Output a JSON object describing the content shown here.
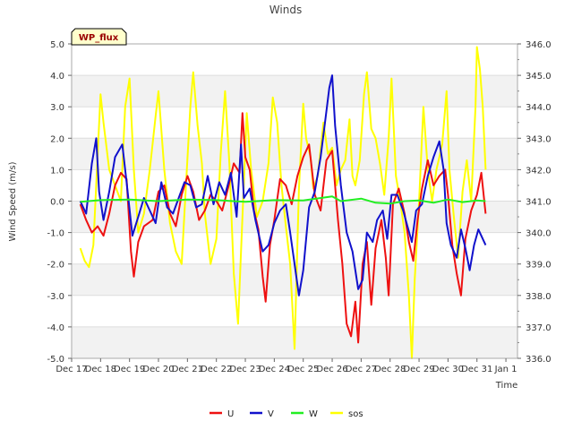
{
  "chart_data": {
    "type": "line",
    "title": "Winds",
    "xlabel": "Time",
    "ylabel": "Wind Speed (m/s)",
    "badge": "WP_flux",
    "x_range": [
      0,
      15.4
    ],
    "ylim": [
      -5.0,
      5.0
    ],
    "y2lim": [
      336.0,
      346.0
    ],
    "x_ticks": [
      {
        "x": 0,
        "label": "Dec 17"
      },
      {
        "x": 1,
        "label": "Dec 18"
      },
      {
        "x": 2,
        "label": "Dec 19"
      },
      {
        "x": 3,
        "label": "Dec 20"
      },
      {
        "x": 4,
        "label": "Dec 21"
      },
      {
        "x": 5,
        "label": "Dec 22"
      },
      {
        "x": 6,
        "label": "Dec 23"
      },
      {
        "x": 7,
        "label": "Dec 24"
      },
      {
        "x": 8,
        "label": "Dec 25"
      },
      {
        "x": 9,
        "label": "Dec 26"
      },
      {
        "x": 10,
        "label": "Dec 27"
      },
      {
        "x": 11,
        "label": "Dec 28"
      },
      {
        "x": 12,
        "label": "Dec 29"
      },
      {
        "x": 13,
        "label": "Dec 30"
      },
      {
        "x": 14,
        "label": "Dec 31"
      },
      {
        "x": 15,
        "label": "Jan 1"
      }
    ],
    "y_ticks": [
      {
        "v": 5.0,
        "label": "5.0"
      },
      {
        "v": 4.0,
        "label": "4.0"
      },
      {
        "v": 3.0,
        "label": "3.0"
      },
      {
        "v": 2.0,
        "label": "2.0"
      },
      {
        "v": 1.0,
        "label": "1.0"
      },
      {
        "v": 0.0,
        "label": "0.0"
      },
      {
        "v": -1.0,
        "label": "-1.0"
      },
      {
        "v": -2.0,
        "label": "-2.0"
      },
      {
        "v": -3.0,
        "label": "-3.0"
      },
      {
        "v": -4.0,
        "label": "-4.0"
      },
      {
        "v": -5.0,
        "label": "-5.0"
      }
    ],
    "y2_ticks": [
      {
        "v": 346.0,
        "label": "346.0"
      },
      {
        "v": 345.0,
        "label": "345.0"
      },
      {
        "v": 344.0,
        "label": "344.0"
      },
      {
        "v": 343.0,
        "label": "343.0"
      },
      {
        "v": 342.0,
        "label": "342.0"
      },
      {
        "v": 341.0,
        "label": "341.0"
      },
      {
        "v": 340.0,
        "label": "340.0"
      },
      {
        "v": 339.0,
        "label": "339.0"
      },
      {
        "v": 338.0,
        "label": "338.0"
      },
      {
        "v": 337.0,
        "label": "337.0"
      },
      {
        "v": 336.0,
        "label": "336.0"
      }
    ],
    "series": [
      {
        "name": "U",
        "color": "#ee1111",
        "axis": "left",
        "points": [
          [
            0.3,
            -0.1
          ],
          [
            0.5,
            -0.6
          ],
          [
            0.7,
            -1.0
          ],
          [
            0.9,
            -0.8
          ],
          [
            1.1,
            -1.1
          ],
          [
            1.3,
            -0.4
          ],
          [
            1.5,
            0.5
          ],
          [
            1.7,
            0.9
          ],
          [
            1.9,
            0.7
          ],
          [
            2.05,
            -1.6
          ],
          [
            2.15,
            -2.4
          ],
          [
            2.3,
            -1.3
          ],
          [
            2.5,
            -0.8
          ],
          [
            2.8,
            -0.6
          ],
          [
            3.0,
            0.3
          ],
          [
            3.2,
            0.5
          ],
          [
            3.4,
            -0.4
          ],
          [
            3.6,
            -0.8
          ],
          [
            3.8,
            0.2
          ],
          [
            4.0,
            0.8
          ],
          [
            4.2,
            0.3
          ],
          [
            4.4,
            -0.6
          ],
          [
            4.6,
            -0.3
          ],
          [
            4.8,
            0.2
          ],
          [
            5.0,
            0.0
          ],
          [
            5.2,
            -0.3
          ],
          [
            5.4,
            0.4
          ],
          [
            5.6,
            1.2
          ],
          [
            5.8,
            0.9
          ],
          [
            5.9,
            2.8
          ],
          [
            6.0,
            1.4
          ],
          [
            6.15,
            1.0
          ],
          [
            6.3,
            -0.3
          ],
          [
            6.45,
            -0.9
          ],
          [
            6.6,
            -2.4
          ],
          [
            6.7,
            -3.2
          ],
          [
            6.85,
            -1.4
          ],
          [
            7.0,
            -0.6
          ],
          [
            7.2,
            0.7
          ],
          [
            7.4,
            0.5
          ],
          [
            7.6,
            -0.1
          ],
          [
            7.8,
            0.8
          ],
          [
            8.0,
            1.4
          ],
          [
            8.2,
            1.8
          ],
          [
            8.4,
            0.2
          ],
          [
            8.6,
            -0.3
          ],
          [
            8.8,
            1.3
          ],
          [
            9.0,
            1.6
          ],
          [
            9.2,
            -0.6
          ],
          [
            9.35,
            -2.0
          ],
          [
            9.5,
            -3.9
          ],
          [
            9.65,
            -4.3
          ],
          [
            9.8,
            -3.2
          ],
          [
            9.9,
            -4.5
          ],
          [
            10.05,
            -2.0
          ],
          [
            10.2,
            -1.3
          ],
          [
            10.35,
            -3.3
          ],
          [
            10.5,
            -1.5
          ],
          [
            10.7,
            -0.6
          ],
          [
            10.85,
            -1.8
          ],
          [
            10.95,
            -3.0
          ],
          [
            11.1,
            -0.1
          ],
          [
            11.3,
            0.4
          ],
          [
            11.5,
            -0.4
          ],
          [
            11.65,
            -1.3
          ],
          [
            11.8,
            -1.9
          ],
          [
            11.95,
            -0.6
          ],
          [
            12.1,
            0.4
          ],
          [
            12.3,
            1.3
          ],
          [
            12.5,
            0.5
          ],
          [
            12.7,
            0.8
          ],
          [
            12.9,
            1.0
          ],
          [
            13.0,
            0.2
          ],
          [
            13.15,
            -1.4
          ],
          [
            13.3,
            -2.3
          ],
          [
            13.45,
            -3.0
          ],
          [
            13.6,
            -1.2
          ],
          [
            13.8,
            -0.3
          ],
          [
            14.0,
            0.2
          ],
          [
            14.15,
            0.9
          ],
          [
            14.3,
            -0.4
          ]
        ]
      },
      {
        "name": "V",
        "color": "#1111cc",
        "axis": "left",
        "points": [
          [
            0.3,
            0.0
          ],
          [
            0.5,
            -0.4
          ],
          [
            0.7,
            1.2
          ],
          [
            0.85,
            2.0
          ],
          [
            0.95,
            0.3
          ],
          [
            1.1,
            -0.6
          ],
          [
            1.3,
            0.3
          ],
          [
            1.5,
            1.4
          ],
          [
            1.75,
            1.8
          ],
          [
            1.9,
            0.6
          ],
          [
            2.1,
            -1.1
          ],
          [
            2.3,
            -0.5
          ],
          [
            2.5,
            0.1
          ],
          [
            2.7,
            -0.3
          ],
          [
            2.9,
            -0.7
          ],
          [
            3.1,
            0.6
          ],
          [
            3.3,
            -0.2
          ],
          [
            3.5,
            -0.4
          ],
          [
            3.7,
            0.1
          ],
          [
            3.9,
            0.6
          ],
          [
            4.1,
            0.5
          ],
          [
            4.3,
            -0.2
          ],
          [
            4.5,
            -0.1
          ],
          [
            4.7,
            0.8
          ],
          [
            4.9,
            -0.1
          ],
          [
            5.1,
            0.6
          ],
          [
            5.3,
            0.2
          ],
          [
            5.5,
            0.9
          ],
          [
            5.7,
            -0.5
          ],
          [
            5.85,
            1.8
          ],
          [
            5.95,
            0.1
          ],
          [
            6.15,
            0.4
          ],
          [
            6.35,
            -0.6
          ],
          [
            6.6,
            -1.6
          ],
          [
            6.8,
            -1.4
          ],
          [
            7.0,
            -0.7
          ],
          [
            7.2,
            -0.3
          ],
          [
            7.4,
            -0.1
          ],
          [
            7.55,
            -1.0
          ],
          [
            7.7,
            -2.0
          ],
          [
            7.85,
            -3.0
          ],
          [
            8.0,
            -2.2
          ],
          [
            8.2,
            -0.2
          ],
          [
            8.4,
            0.3
          ],
          [
            8.6,
            1.4
          ],
          [
            8.75,
            2.5
          ],
          [
            8.9,
            3.6
          ],
          [
            9.0,
            4.0
          ],
          [
            9.1,
            2.4
          ],
          [
            9.3,
            0.5
          ],
          [
            9.5,
            -1.0
          ],
          [
            9.7,
            -1.6
          ],
          [
            9.9,
            -2.8
          ],
          [
            10.05,
            -2.5
          ],
          [
            10.2,
            -1.0
          ],
          [
            10.4,
            -1.3
          ],
          [
            10.55,
            -0.6
          ],
          [
            10.75,
            -0.3
          ],
          [
            10.9,
            -1.2
          ],
          [
            11.05,
            0.2
          ],
          [
            11.25,
            0.2
          ],
          [
            11.45,
            -0.3
          ],
          [
            11.6,
            -0.8
          ],
          [
            11.75,
            -1.3
          ],
          [
            11.9,
            -0.3
          ],
          [
            12.1,
            -0.1
          ],
          [
            12.3,
            0.8
          ],
          [
            12.5,
            1.4
          ],
          [
            12.7,
            1.9
          ],
          [
            12.85,
            1.0
          ],
          [
            12.95,
            -0.7
          ],
          [
            13.1,
            -1.4
          ],
          [
            13.3,
            -1.8
          ],
          [
            13.45,
            -0.9
          ],
          [
            13.6,
            -1.5
          ],
          [
            13.75,
            -2.2
          ],
          [
            13.9,
            -1.4
          ],
          [
            14.05,
            -0.9
          ],
          [
            14.3,
            -1.4
          ]
        ]
      },
      {
        "name": "W",
        "color": "#22ee22",
        "axis": "left",
        "points": [
          [
            0.3,
            -0.02
          ],
          [
            1.0,
            0.03
          ],
          [
            2.0,
            0.05
          ],
          [
            3.0,
            0.0
          ],
          [
            4.0,
            0.05
          ],
          [
            5.0,
            0.03
          ],
          [
            6.0,
            -0.02
          ],
          [
            7.0,
            0.03
          ],
          [
            8.0,
            0.02
          ],
          [
            9.0,
            0.15
          ],
          [
            9.3,
            0.0
          ],
          [
            10.0,
            0.08
          ],
          [
            10.5,
            -0.05
          ],
          [
            11.0,
            -0.08
          ],
          [
            11.5,
            0.0
          ],
          [
            12.0,
            0.02
          ],
          [
            12.5,
            -0.05
          ],
          [
            13.0,
            0.05
          ],
          [
            13.5,
            -0.03
          ],
          [
            14.0,
            0.02
          ],
          [
            14.3,
            0.0
          ]
        ]
      },
      {
        "name": "sos",
        "color": "#ffff00",
        "axis": "right",
        "points": [
          [
            0.3,
            339.5
          ],
          [
            0.45,
            339.1
          ],
          [
            0.6,
            338.9
          ],
          [
            0.75,
            339.6
          ],
          [
            0.9,
            342.5
          ],
          [
            1.0,
            344.4
          ],
          [
            1.1,
            343.5
          ],
          [
            1.3,
            342.0
          ],
          [
            1.5,
            341.5
          ],
          [
            1.7,
            341.0
          ],
          [
            1.85,
            344.0
          ],
          [
            2.0,
            344.9
          ],
          [
            2.15,
            342.0
          ],
          [
            2.3,
            340.0
          ],
          [
            2.5,
            340.6
          ],
          [
            2.7,
            342.0
          ],
          [
            2.9,
            343.7
          ],
          [
            3.0,
            344.5
          ],
          [
            3.2,
            342.0
          ],
          [
            3.4,
            340.3
          ],
          [
            3.6,
            339.4
          ],
          [
            3.8,
            339.0
          ],
          [
            3.95,
            341.5
          ],
          [
            4.1,
            344.0
          ],
          [
            4.2,
            345.1
          ],
          [
            4.35,
            343.4
          ],
          [
            4.5,
            342.2
          ],
          [
            4.6,
            340.6
          ],
          [
            4.8,
            339.0
          ],
          [
            5.0,
            339.8
          ],
          [
            5.15,
            342.5
          ],
          [
            5.3,
            344.5
          ],
          [
            5.45,
            342.2
          ],
          [
            5.6,
            338.7
          ],
          [
            5.75,
            337.1
          ],
          [
            5.9,
            340.5
          ],
          [
            6.05,
            343.8
          ],
          [
            6.2,
            342.0
          ],
          [
            6.4,
            340.5
          ],
          [
            6.6,
            341.0
          ],
          [
            6.8,
            342.2
          ],
          [
            6.95,
            344.3
          ],
          [
            7.1,
            343.5
          ],
          [
            7.25,
            341.5
          ],
          [
            7.4,
            340.2
          ],
          [
            7.55,
            339.0
          ],
          [
            7.7,
            336.3
          ],
          [
            7.85,
            341.4
          ],
          [
            8.0,
            344.1
          ],
          [
            8.1,
            343.0
          ],
          [
            8.25,
            342.4
          ],
          [
            8.35,
            341.4
          ],
          [
            8.5,
            341.8
          ],
          [
            8.7,
            343.5
          ],
          [
            8.85,
            342.5
          ],
          [
            9.0,
            342.7
          ],
          [
            9.15,
            341.5
          ],
          [
            9.3,
            342.0
          ],
          [
            9.45,
            342.3
          ],
          [
            9.6,
            343.6
          ],
          [
            9.7,
            341.8
          ],
          [
            9.8,
            341.5
          ],
          [
            9.95,
            342.3
          ],
          [
            10.1,
            344.4
          ],
          [
            10.2,
            345.1
          ],
          [
            10.35,
            343.3
          ],
          [
            10.5,
            343.0
          ],
          [
            10.65,
            342.2
          ],
          [
            10.8,
            341.2
          ],
          [
            10.95,
            343.0
          ],
          [
            11.05,
            344.9
          ],
          [
            11.2,
            341.8
          ],
          [
            11.35,
            341.0
          ],
          [
            11.5,
            340.0
          ],
          [
            11.65,
            338.0
          ],
          [
            11.75,
            336.0
          ],
          [
            11.85,
            338.5
          ],
          [
            12.0,
            341.0
          ],
          [
            12.15,
            344.0
          ],
          [
            12.3,
            342.0
          ],
          [
            12.45,
            341.0
          ],
          [
            12.6,
            342.0
          ],
          [
            12.8,
            342.8
          ],
          [
            12.95,
            344.5
          ],
          [
            13.05,
            342.0
          ],
          [
            13.2,
            340.5
          ],
          [
            13.35,
            339.2
          ],
          [
            13.5,
            341.3
          ],
          [
            13.65,
            342.3
          ],
          [
            13.8,
            341.0
          ],
          [
            13.95,
            344.0
          ],
          [
            14.0,
            345.9
          ],
          [
            14.1,
            345.2
          ],
          [
            14.2,
            344.0
          ],
          [
            14.3,
            342.0
          ]
        ]
      }
    ]
  }
}
